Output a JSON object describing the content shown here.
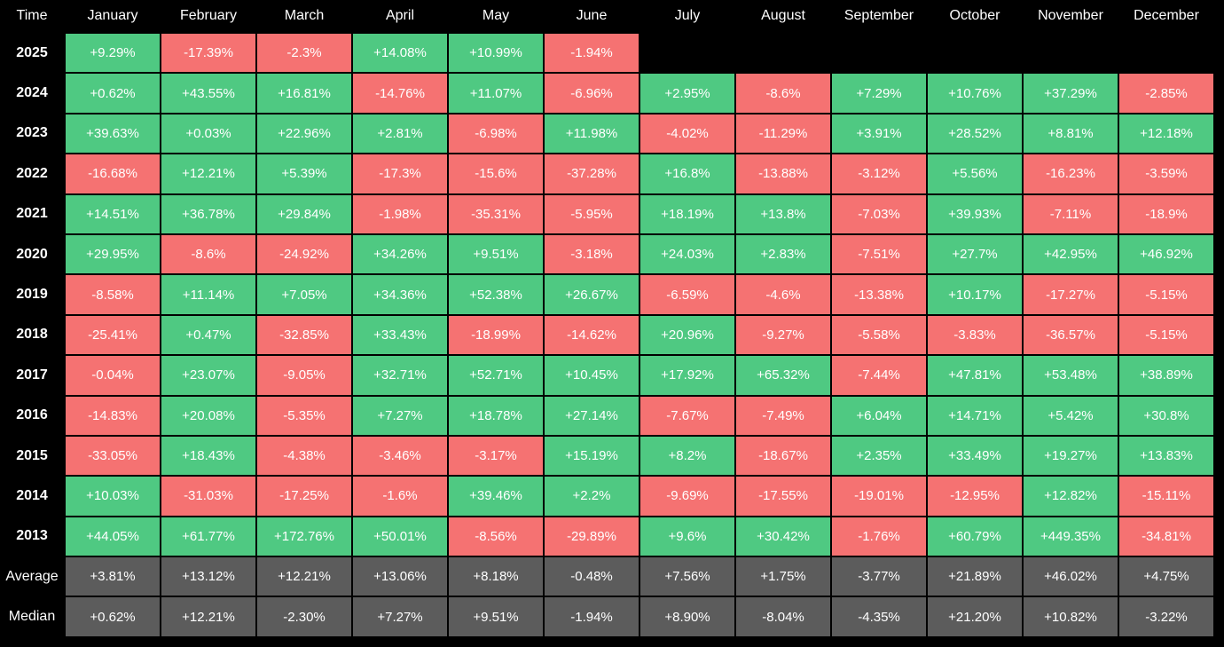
{
  "table": {
    "header": [
      "Time",
      "January",
      "February",
      "March",
      "April",
      "May",
      "June",
      "July",
      "August",
      "September",
      "October",
      "November",
      "December"
    ],
    "rows": [
      {
        "label": "2025",
        "cells": [
          "+9.29%",
          "-17.39%",
          "-2.3%",
          "+14.08%",
          "+10.99%",
          "-1.94%"
        ]
      },
      {
        "label": "2024",
        "cells": [
          "+0.62%",
          "+43.55%",
          "+16.81%",
          "-14.76%",
          "+11.07%",
          "-6.96%",
          "+2.95%",
          "-8.6%",
          "+7.29%",
          "+10.76%",
          "+37.29%",
          "-2.85%"
        ]
      },
      {
        "label": "2023",
        "cells": [
          "+39.63%",
          "+0.03%",
          "+22.96%",
          "+2.81%",
          "-6.98%",
          "+11.98%",
          "-4.02%",
          "-11.29%",
          "+3.91%",
          "+28.52%",
          "+8.81%",
          "+12.18%"
        ]
      },
      {
        "label": "2022",
        "cells": [
          "-16.68%",
          "+12.21%",
          "+5.39%",
          "-17.3%",
          "-15.6%",
          "-37.28%",
          "+16.8%",
          "-13.88%",
          "-3.12%",
          "+5.56%",
          "-16.23%",
          "-3.59%"
        ]
      },
      {
        "label": "2021",
        "cells": [
          "+14.51%",
          "+36.78%",
          "+29.84%",
          "-1.98%",
          "-35.31%",
          "-5.95%",
          "+18.19%",
          "+13.8%",
          "-7.03%",
          "+39.93%",
          "-7.11%",
          "-18.9%"
        ]
      },
      {
        "label": "2020",
        "cells": [
          "+29.95%",
          "-8.6%",
          "-24.92%",
          "+34.26%",
          "+9.51%",
          "-3.18%",
          "+24.03%",
          "+2.83%",
          "-7.51%",
          "+27.7%",
          "+42.95%",
          "+46.92%"
        ]
      },
      {
        "label": "2019",
        "cells": [
          "-8.58%",
          "+11.14%",
          "+7.05%",
          "+34.36%",
          "+52.38%",
          "+26.67%",
          "-6.59%",
          "-4.6%",
          "-13.38%",
          "+10.17%",
          "-17.27%",
          "-5.15%"
        ]
      },
      {
        "label": "2018",
        "cells": [
          "-25.41%",
          "+0.47%",
          "-32.85%",
          "+33.43%",
          "-18.99%",
          "-14.62%",
          "+20.96%",
          "-9.27%",
          "-5.58%",
          "-3.83%",
          "-36.57%",
          "-5.15%"
        ]
      },
      {
        "label": "2017",
        "cells": [
          "-0.04%",
          "+23.07%",
          "-9.05%",
          "+32.71%",
          "+52.71%",
          "+10.45%",
          "+17.92%",
          "+65.32%",
          "-7.44%",
          "+47.81%",
          "+53.48%",
          "+38.89%"
        ]
      },
      {
        "label": "2016",
        "cells": [
          "-14.83%",
          "+20.08%",
          "-5.35%",
          "+7.27%",
          "+18.78%",
          "+27.14%",
          "-7.67%",
          "-7.49%",
          "+6.04%",
          "+14.71%",
          "+5.42%",
          "+30.8%"
        ]
      },
      {
        "label": "2015",
        "cells": [
          "-33.05%",
          "+18.43%",
          "-4.38%",
          "-3.46%",
          "-3.17%",
          "+15.19%",
          "+8.2%",
          "-18.67%",
          "+2.35%",
          "+33.49%",
          "+19.27%",
          "+13.83%"
        ]
      },
      {
        "label": "2014",
        "cells": [
          "+10.03%",
          "-31.03%",
          "-17.25%",
          "-1.6%",
          "+39.46%",
          "+2.2%",
          "-9.69%",
          "-17.55%",
          "-19.01%",
          "-12.95%",
          "+12.82%",
          "-15.11%"
        ]
      },
      {
        "label": "2013",
        "cells": [
          "+44.05%",
          "+61.77%",
          "+172.76%",
          "+50.01%",
          "-8.56%",
          "-29.89%",
          "+9.6%",
          "+30.42%",
          "-1.76%",
          "+60.79%",
          "+449.35%",
          "-34.81%"
        ]
      }
    ],
    "summary": [
      {
        "label": "Average",
        "cells": [
          "+3.81%",
          "+13.12%",
          "+12.21%",
          "+13.06%",
          "+8.18%",
          "-0.48%",
          "+7.56%",
          "+1.75%",
          "-3.77%",
          "+21.89%",
          "+46.02%",
          "+4.75%"
        ]
      },
      {
        "label": "Median",
        "cells": [
          "+0.62%",
          "+12.21%",
          "-2.30%",
          "+7.27%",
          "+9.51%",
          "-1.94%",
          "+8.90%",
          "-8.04%",
          "-4.35%",
          "+21.20%",
          "+10.82%",
          "-3.22%"
        ]
      }
    ],
    "colors": {
      "positive": "#4fc982",
      "negative": "#f57272",
      "summary": "#5c5c5c"
    }
  }
}
